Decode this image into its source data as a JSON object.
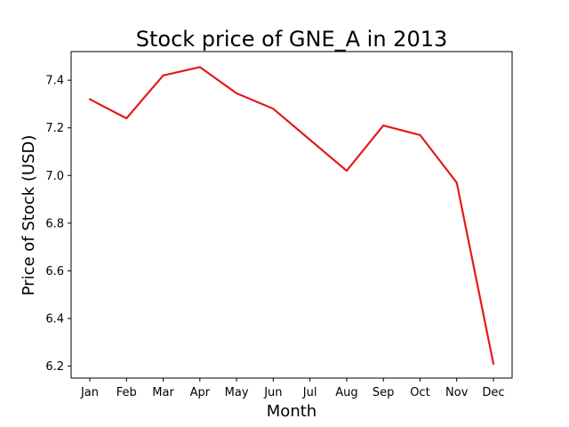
{
  "chart_data": {
    "type": "line",
    "title": "Stock price of GNE_A in 2013",
    "xlabel": "Month",
    "ylabel": "Price of Stock (USD)",
    "categories": [
      "Jan",
      "Feb",
      "Mar",
      "Apr",
      "May",
      "Jun",
      "Jul",
      "Aug",
      "Sep",
      "Oct",
      "Nov",
      "Dec"
    ],
    "series": [
      {
        "values": [
          7.32,
          7.24,
          7.42,
          7.455,
          7.345,
          7.28,
          7.15,
          7.02,
          7.21,
          7.17,
          6.97,
          6.21
        ]
      }
    ],
    "ylim": [
      6.15,
      7.52
    ],
    "yticks": [
      6.2,
      6.4,
      6.6,
      6.8,
      7.0,
      7.2,
      7.4
    ],
    "ytick_labels": [
      "6.2",
      "6.4",
      "6.6",
      "6.8",
      "7.0",
      "7.2",
      "7.4"
    ],
    "line_color": "#e31a1c",
    "grid": false
  }
}
